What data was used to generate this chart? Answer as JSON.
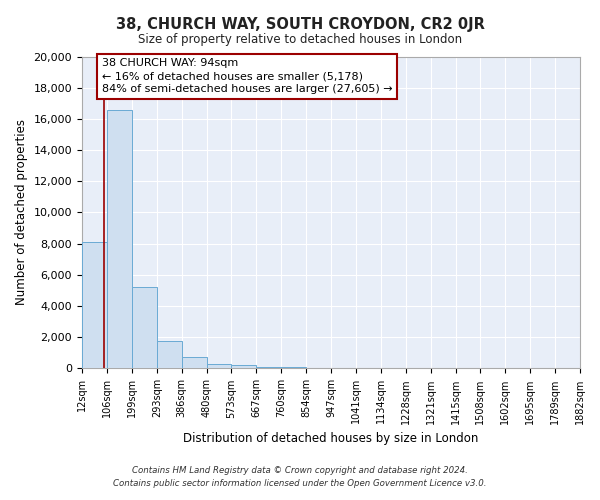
{
  "title": "38, CHURCH WAY, SOUTH CROYDON, CR2 0JR",
  "subtitle": "Size of property relative to detached houses in London",
  "xlabel": "Distribution of detached houses by size in London",
  "ylabel": "Number of detached properties",
  "bin_labels": [
    "12sqm",
    "106sqm",
    "199sqm",
    "293sqm",
    "386sqm",
    "480sqm",
    "573sqm",
    "667sqm",
    "760sqm",
    "854sqm",
    "947sqm",
    "1041sqm",
    "1134sqm",
    "1228sqm",
    "1321sqm",
    "1415sqm",
    "1508sqm",
    "1602sqm",
    "1695sqm",
    "1789sqm",
    "1882sqm"
  ],
  "bar_heights": [
    8100,
    16600,
    5250,
    1750,
    750,
    300,
    200,
    100,
    75,
    50,
    40,
    30,
    25,
    20,
    15,
    10,
    8,
    6,
    5,
    4,
    3
  ],
  "bar_color": "#cfdff0",
  "bar_edge_color": "#6aaad4",
  "property_line_x": 94,
  "property_line_color": "#9b0000",
  "annotation_text": "38 CHURCH WAY: 94sqm\n← 16% of detached houses are smaller (5,178)\n84% of semi-detached houses are larger (27,605) →",
  "annotation_box_color": "#ffffff",
  "annotation_box_edge": "#9b0000",
  "ylim": [
    0,
    20000
  ],
  "yticks": [
    0,
    2000,
    4000,
    6000,
    8000,
    10000,
    12000,
    14000,
    16000,
    18000,
    20000
  ],
  "bg_color": "#e8eef8",
  "grid_color": "#ffffff",
  "footer_line1": "Contains HM Land Registry data © Crown copyright and database right 2024.",
  "footer_line2": "Contains public sector information licensed under the Open Government Licence v3.0."
}
